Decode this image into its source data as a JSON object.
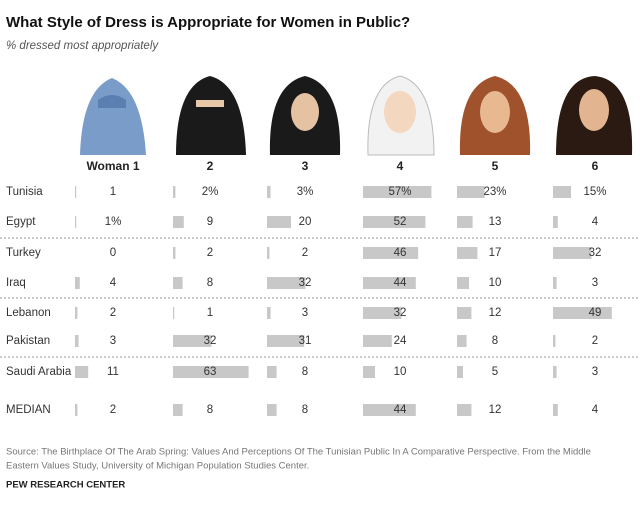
{
  "chart_data": {
    "type": "bar",
    "title": "What Style of Dress is Appropriate  for Women in Public?",
    "subtitle": "% dressed most appropriately",
    "categories": [
      "Tunisia",
      "Egypt",
      "Turkey",
      "Iraq",
      "Lebanon",
      "Pakistan",
      "Saudi Arabia",
      "MEDIAN"
    ],
    "series": [
      {
        "name": "Woman 1",
        "color": "#c8c8c8",
        "values": [
          1,
          1,
          0,
          4,
          2,
          3,
          11,
          2
        ],
        "value_labels": [
          "1",
          "1%",
          "0",
          "4",
          "2",
          "3",
          "11",
          "2"
        ]
      },
      {
        "name": "2",
        "color": "#c8c8c8",
        "values": [
          2,
          9,
          2,
          8,
          1,
          32,
          63,
          8
        ],
        "value_labels": [
          "2%",
          "9",
          "2",
          "8",
          "1",
          "32",
          "63",
          "8"
        ]
      },
      {
        "name": "3",
        "color": "#c8c8c8",
        "values": [
          3,
          20,
          2,
          32,
          3,
          31,
          8,
          8
        ],
        "value_labels": [
          "3%",
          "20",
          "2",
          "32",
          "3",
          "31",
          "8",
          "8"
        ]
      },
      {
        "name": "4",
        "color": "#c8c8c8",
        "values": [
          57,
          52,
          46,
          44,
          32,
          24,
          10,
          44
        ],
        "value_labels": [
          "57%",
          "52",
          "46",
          "44",
          "32",
          "24",
          "10",
          "44"
        ]
      },
      {
        "name": "5",
        "color": "#c8c8c8",
        "values": [
          23,
          13,
          17,
          10,
          12,
          8,
          5,
          12
        ],
        "value_labels": [
          "23%",
          "13",
          "17",
          "10",
          "12",
          "8",
          "5",
          "12"
        ]
      },
      {
        "name": "6",
        "color": "#c8c8c8",
        "values": [
          15,
          4,
          32,
          3,
          49,
          2,
          3,
          4
        ],
        "value_labels": [
          "15%",
          "4",
          "32",
          "3",
          "49",
          "2",
          "3",
          "4"
        ]
      }
    ],
    "source": "Source: The Birthplace Of The Arab Spring: Values And Perceptions Of The Tunisian Public In A Comparative Perspective. From the Middle",
    "source_2": "Eastern Values Study, University of Michigan Population Studies Center.",
    "brand": "PEW RESEARCH CENTER"
  }
}
